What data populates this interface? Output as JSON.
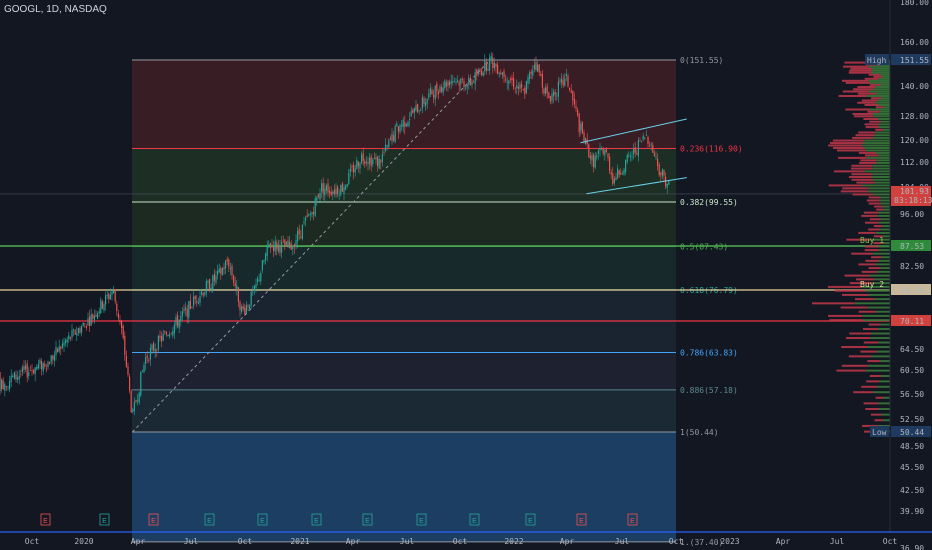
{
  "header": {
    "title": "GOOGL, 1D, NASDAQ"
  },
  "chart_data": {
    "type": "candlestick",
    "symbol": "GOOGL",
    "interval": "1D",
    "exchange": "NASDAQ",
    "y_ticks": [
      "180.00",
      "160.00",
      "140.00",
      "128.00",
      "120.00",
      "112.00",
      "104.00",
      "96.00",
      "82.50",
      "64.50",
      "60.50",
      "56.50",
      "52.50",
      "48.50",
      "45.50",
      "42.50",
      "39.90",
      "36.90"
    ],
    "x_ticks": [
      "Oct",
      "2020",
      "Apr",
      "Jul",
      "Oct",
      "2021",
      "Apr",
      "Jul",
      "Oct",
      "2022",
      "Apr",
      "Jul",
      "Oct",
      "2023",
      "Apr",
      "Jul",
      "Oct"
    ],
    "price_tags": {
      "high": {
        "label": "High",
        "value": "151.55",
        "color": "#1e3a5f"
      },
      "current": {
        "value": "101.93",
        "countdown": "03:18:13",
        "color": "#d1423f"
      },
      "buy1": {
        "value": "87.53",
        "color": "#2e8b3a"
      },
      "buy2": {
        "value": "76.76",
        "color": "#c8b99a"
      },
      "red_line": {
        "value": "70.11",
        "color": "#d1423f"
      },
      "low": {
        "label": "Low",
        "value": "50.44",
        "color": "#1e3a5f"
      }
    },
    "fib_levels": [
      {
        "label": "0(151.55)",
        "price": 151.55,
        "color": "#9598a1",
        "fill": "#3a1e26"
      },
      {
        "label": "0.236(116.90)",
        "price": 116.9,
        "color": "#f23645",
        "fill": "#1e2f26"
      },
      {
        "label": "0.382(99.55)",
        "price": 99.55,
        "color": "#c8e6c9",
        "fill": "#1c2b22"
      },
      {
        "label": "0.5(87.43)",
        "price": 87.43,
        "color": "#4caf50",
        "fill": "#182a2c"
      },
      {
        "label": "0.618(76.79)",
        "price": 76.79,
        "color": "#26a69a",
        "fill": "#1a2432"
      },
      {
        "label": "0.786(63.83)",
        "price": 63.83,
        "color": "#42a5f5",
        "fill": "#1e2232"
      },
      {
        "label": "0.886(57.18)",
        "price": 57.18,
        "color": "#5d8a8f",
        "fill": "#1a2a35"
      },
      {
        "label": "1(50.44)",
        "price": 50.44,
        "color": "#9598a1",
        "fill": "#1c4066"
      },
      {
        "label": "1.(37.40)",
        "price": 37.4,
        "color": "#9598a1",
        "fill": "#1c4066"
      }
    ],
    "annotations": [
      "Buy 1",
      "Buy 2"
    ],
    "earnings_markers": [
      "E",
      "E",
      "E",
      "E",
      "E",
      "E",
      "E",
      "E",
      "E",
      "E",
      "E",
      "E"
    ],
    "price_path": [
      [
        "2019-10-01",
        60.5
      ],
      [
        "2019-11-01",
        62
      ],
      [
        "2019-12-01",
        66
      ],
      [
        "2020-01-15",
        71
      ],
      [
        "2020-02-19",
        76.7
      ],
      [
        "2020-03-05",
        68
      ],
      [
        "2020-03-23",
        52.7
      ],
      [
        "2020-04-15",
        63
      ],
      [
        "2020-05-15",
        67
      ],
      [
        "2020-06-15",
        71
      ],
      [
        "2020-07-15",
        76
      ],
      [
        "2020-08-15",
        80
      ],
      [
        "2020-09-01",
        84
      ],
      [
        "2020-09-25",
        72
      ],
      [
        "2020-10-15",
        76
      ],
      [
        "2020-11-10",
        88
      ],
      [
        "2020-12-15",
        87
      ],
      [
        "2021-01-20",
        96
      ],
      [
        "2021-02-05",
        104
      ],
      [
        "2021-02-25",
        103
      ],
      [
        "2021-03-15",
        104
      ],
      [
        "2021-04-15",
        114
      ],
      [
        "2021-05-15",
        112
      ],
      [
        "2021-06-15",
        124
      ],
      [
        "2021-07-15",
        130
      ],
      [
        "2021-08-15",
        138
      ],
      [
        "2021-09-15",
        143
      ],
      [
        "2021-10-15",
        141
      ],
      [
        "2021-11-19",
        151.5
      ],
      [
        "2021-12-15",
        145
      ],
      [
        "2022-01-15",
        137
      ],
      [
        "2022-02-03",
        151
      ],
      [
        "2022-02-25",
        135
      ],
      [
        "2022-03-29",
        143
      ],
      [
        "2022-04-20",
        124
      ],
      [
        "2022-05-12",
        112
      ],
      [
        "2022-06-01",
        117
      ],
      [
        "2022-06-16",
        106
      ],
      [
        "2022-07-15",
        114
      ],
      [
        "2022-08-12",
        122
      ],
      [
        "2022-09-01",
        110
      ],
      [
        "2022-09-20",
        104
      ],
      [
        "2022-09-28",
        101.93
      ]
    ],
    "channel": {
      "upper": [
        [
          "2022-04-28",
          119
        ],
        [
          "2022-09-28",
          127
        ]
      ],
      "lower": [
        [
          "2022-04-28",
          102
        ],
        [
          "2022-09-28",
          107
        ]
      ]
    },
    "trendline": [
      [
        "2020-03-23",
        50.44
      ],
      [
        "2021-11-19",
        151.55
      ]
    ]
  }
}
